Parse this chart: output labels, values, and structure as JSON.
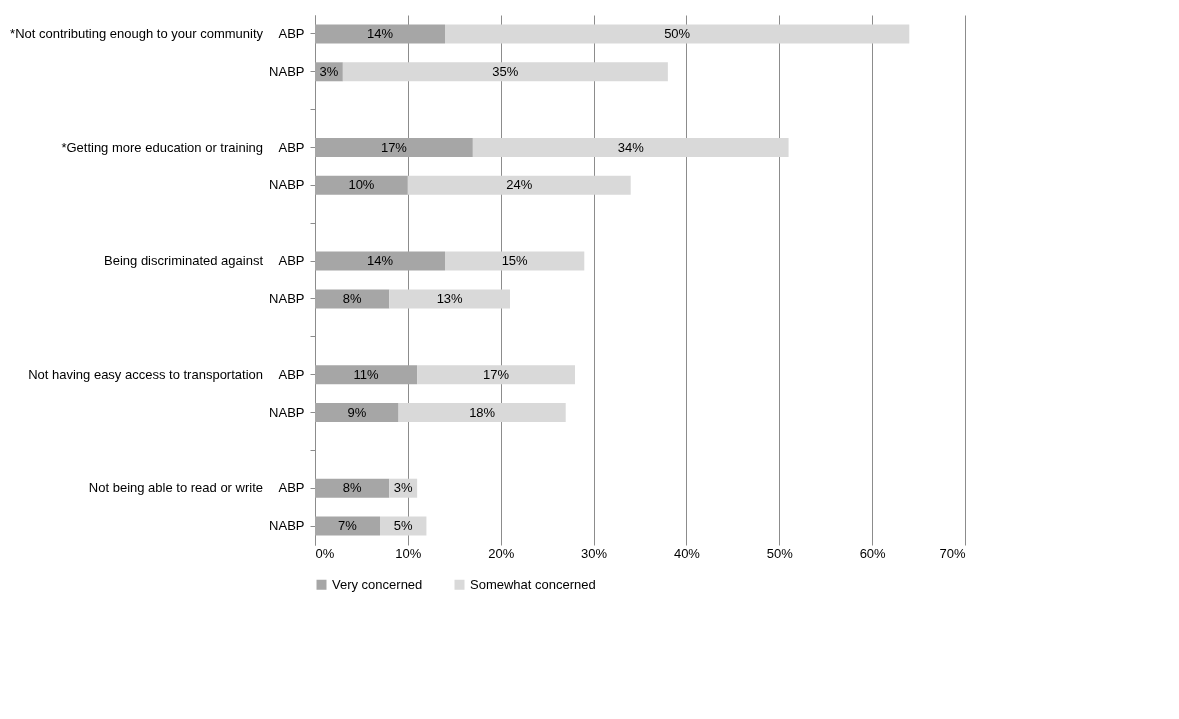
{
  "chart_data": {
    "type": "bar",
    "orientation": "horizontal",
    "stacked": true,
    "categories": [
      "ABP",
      "NABP",
      null,
      "ABP",
      "NABP",
      null,
      "ABP",
      "NABP",
      null,
      "ABP",
      "NABP",
      null,
      "ABP",
      "NABP"
    ],
    "series": [
      {
        "name": "Very concerned",
        "color": "#a6a6a6",
        "values": [
          14,
          3,
          null,
          17,
          10,
          null,
          14,
          8,
          null,
          11,
          9,
          null,
          8,
          7
        ],
        "value_labels": [
          "14%",
          "3%",
          null,
          "17%",
          "10%",
          null,
          "14%",
          "8%",
          null,
          "11%",
          "9%",
          null,
          "8%",
          "7%"
        ]
      },
      {
        "name": "Somewhat concerned",
        "color": "#d9d9d9",
        "values": [
          50,
          35,
          null,
          34,
          24,
          null,
          15,
          13,
          null,
          17,
          18,
          null,
          3,
          5
        ],
        "value_labels": [
          "50%",
          "35%",
          null,
          "34%",
          "24%",
          null,
          "15%",
          "13%",
          null,
          "17%",
          "18%",
          null,
          "3%",
          "5%"
        ]
      }
    ],
    "annotations": [
      "*Not contributing enough to your community",
      "*Getting more education or training",
      "Being discriminated against",
      "Not having easy access to transportation",
      "Not being able to read or write"
    ],
    "xlim": [
      0,
      70
    ],
    "xticks": [
      {
        "value": 0,
        "label": "0%"
      },
      {
        "value": 10,
        "label": "10%"
      },
      {
        "value": 20,
        "label": "20%"
      },
      {
        "value": 30,
        "label": "30%"
      },
      {
        "value": 40,
        "label": "40%"
      },
      {
        "value": 50,
        "label": "50%"
      },
      {
        "value": 60,
        "label": "60%"
      },
      {
        "value": 70,
        "label": "70%"
      }
    ],
    "grid": "x",
    "legend": "bottom"
  }
}
